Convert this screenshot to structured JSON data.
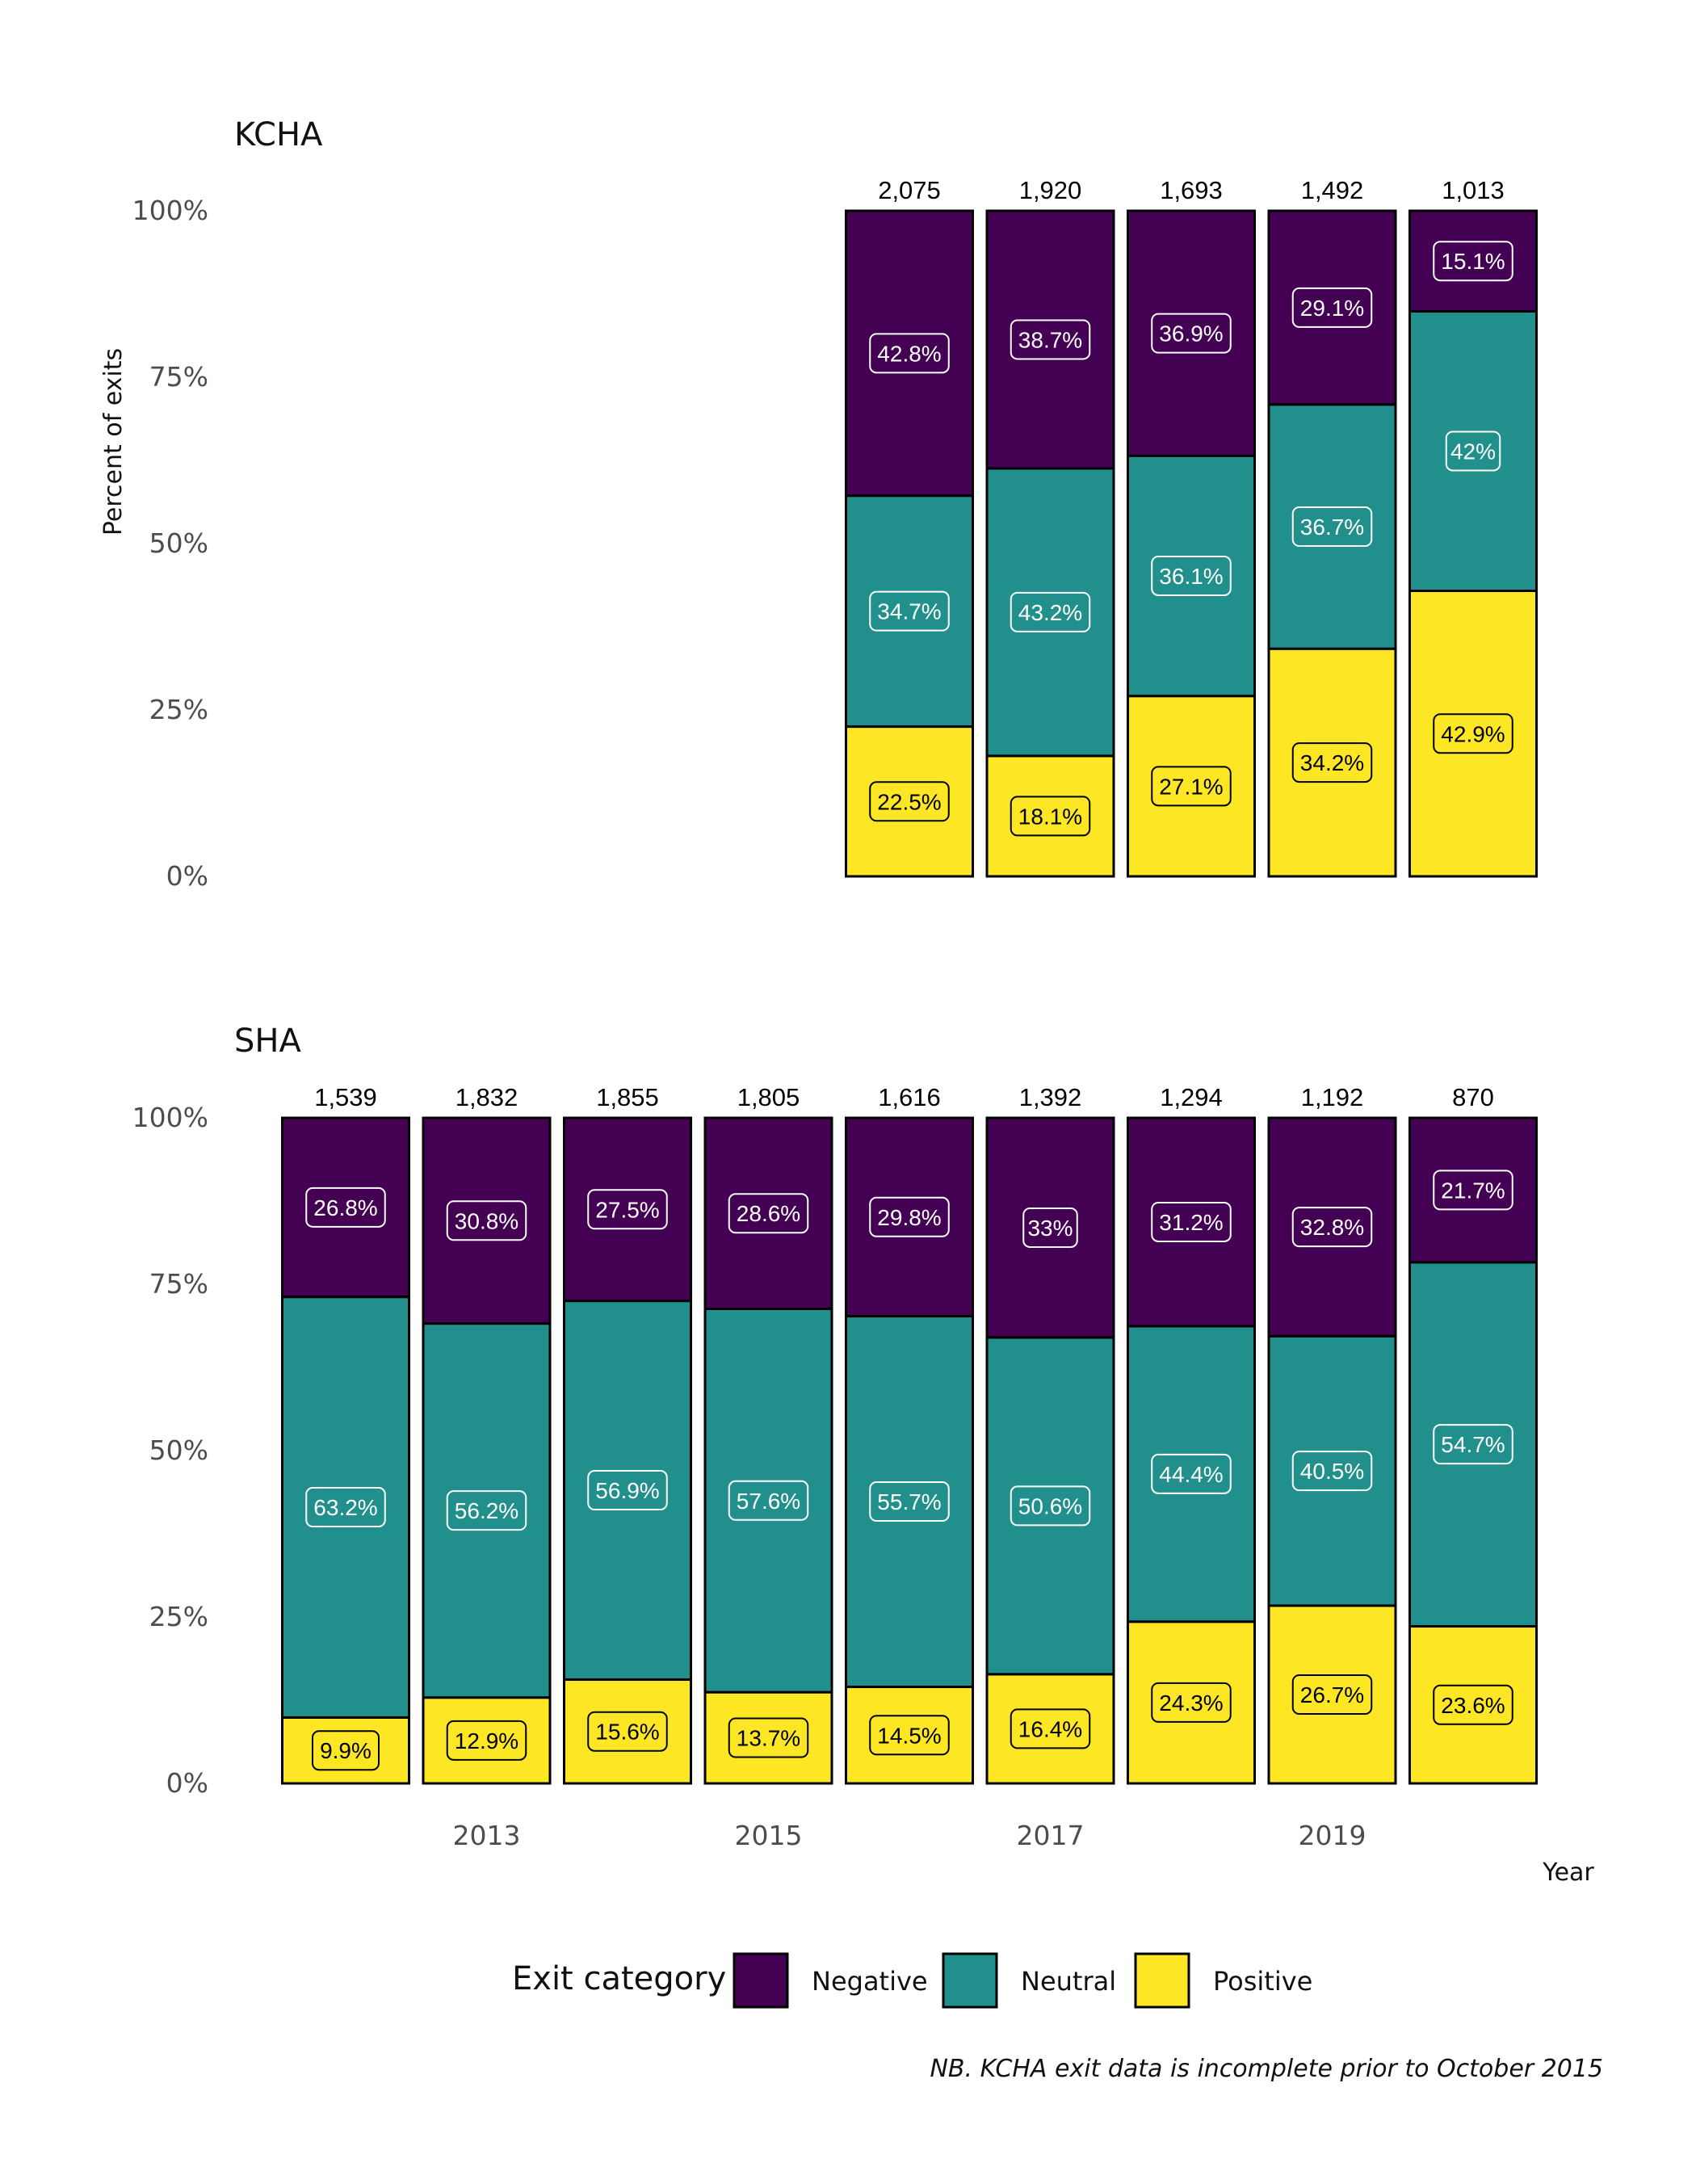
{
  "chart_data": [
    {
      "type": "bar",
      "stacked": true,
      "title": "KCHA",
      "ylabel": "Percent of exits",
      "xlabel": "Year",
      "ylim": [
        0,
        100
      ],
      "yticks": [
        "0%",
        "25%",
        "50%",
        "75%",
        "100%"
      ],
      "x": [
        2012,
        2013,
        2014,
        2015,
        2016,
        2017,
        2018,
        2019,
        2020
      ],
      "xticks": [
        2013,
        2015,
        2017,
        2019
      ],
      "bars": [
        {
          "x": 2016,
          "total": "2,075",
          "positive": 22.5,
          "neutral": 34.7,
          "negative": 42.8,
          "labels": [
            "22.5%",
            "34.7%",
            "42.8%"
          ]
        },
        {
          "x": 2017,
          "total": "1,920",
          "positive": 18.1,
          "neutral": 43.2,
          "negative": 38.7,
          "labels": [
            "18.1%",
            "43.2%",
            "38.7%"
          ]
        },
        {
          "x": 2018,
          "total": "1,693",
          "positive": 27.1,
          "neutral": 36.1,
          "negative": 36.9,
          "labels": [
            "27.1%",
            "36.1%",
            "36.9%"
          ]
        },
        {
          "x": 2019,
          "total": "1,492",
          "positive": 34.2,
          "neutral": 36.7,
          "negative": 29.1,
          "labels": [
            "34.2%",
            "36.7%",
            "29.1%"
          ]
        },
        {
          "x": 2020,
          "total": "1,013",
          "positive": 42.9,
          "neutral": 42.0,
          "negative": 15.1,
          "labels": [
            "42.9%",
            "42%",
            "15.1%"
          ]
        }
      ]
    },
    {
      "type": "bar",
      "stacked": true,
      "title": "SHA",
      "ylabel": "",
      "xlabel": "Year",
      "ylim": [
        0,
        100
      ],
      "yticks": [
        "0%",
        "25%",
        "50%",
        "75%",
        "100%"
      ],
      "x": [
        2012,
        2013,
        2014,
        2015,
        2016,
        2017,
        2018,
        2019,
        2020
      ],
      "xticks": [
        2013,
        2015,
        2017,
        2019
      ],
      "bars": [
        {
          "x": 2012,
          "total": "1,539",
          "positive": 9.9,
          "neutral": 63.2,
          "negative": 26.8,
          "labels": [
            "9.9%",
            "63.2%",
            "26.8%"
          ]
        },
        {
          "x": 2013,
          "total": "1,832",
          "positive": 12.9,
          "neutral": 56.2,
          "negative": 30.8,
          "labels": [
            "12.9%",
            "56.2%",
            "30.8%"
          ]
        },
        {
          "x": 2014,
          "total": "1,855",
          "positive": 15.6,
          "neutral": 56.9,
          "negative": 27.5,
          "labels": [
            "15.6%",
            "56.9%",
            "27.5%"
          ]
        },
        {
          "x": 2015,
          "total": "1,805",
          "positive": 13.7,
          "neutral": 57.6,
          "negative": 28.6,
          "labels": [
            "13.7%",
            "57.6%",
            "28.6%"
          ]
        },
        {
          "x": 2016,
          "total": "1,616",
          "positive": 14.5,
          "neutral": 55.7,
          "negative": 29.8,
          "labels": [
            "14.5%",
            "55.7%",
            "29.8%"
          ]
        },
        {
          "x": 2017,
          "total": "1,392",
          "positive": 16.4,
          "neutral": 50.6,
          "negative": 33.0,
          "labels": [
            "16.4%",
            "50.6%",
            "33%"
          ]
        },
        {
          "x": 2018,
          "total": "1,294",
          "positive": 24.3,
          "neutral": 44.4,
          "negative": 31.2,
          "labels": [
            "24.3%",
            "44.4%",
            "31.2%"
          ]
        },
        {
          "x": 2019,
          "total": "1,192",
          "positive": 26.7,
          "neutral": 40.5,
          "negative": 32.8,
          "labels": [
            "26.7%",
            "40.5%",
            "32.8%"
          ]
        },
        {
          "x": 2020,
          "total": "870",
          "positive": 23.6,
          "neutral": 54.7,
          "negative": 21.7,
          "labels": [
            "23.6%",
            "54.7%",
            "21.7%"
          ]
        }
      ]
    }
  ],
  "legend": {
    "title": "Exit category",
    "items": [
      {
        "key": "negative",
        "label": "Negative",
        "color": "#440154"
      },
      {
        "key": "neutral",
        "label": "Neutral",
        "color": "#21908c"
      },
      {
        "key": "positive",
        "label": "Positive",
        "color": "#fde725"
      }
    ]
  },
  "colors": {
    "negative": "#440154",
    "neutral": "#21908c",
    "positive": "#fde725",
    "dark_label": "#000000",
    "light_label": "#ffffff"
  },
  "note": "NB. KCHA exit data is incomplete prior to October 2015"
}
